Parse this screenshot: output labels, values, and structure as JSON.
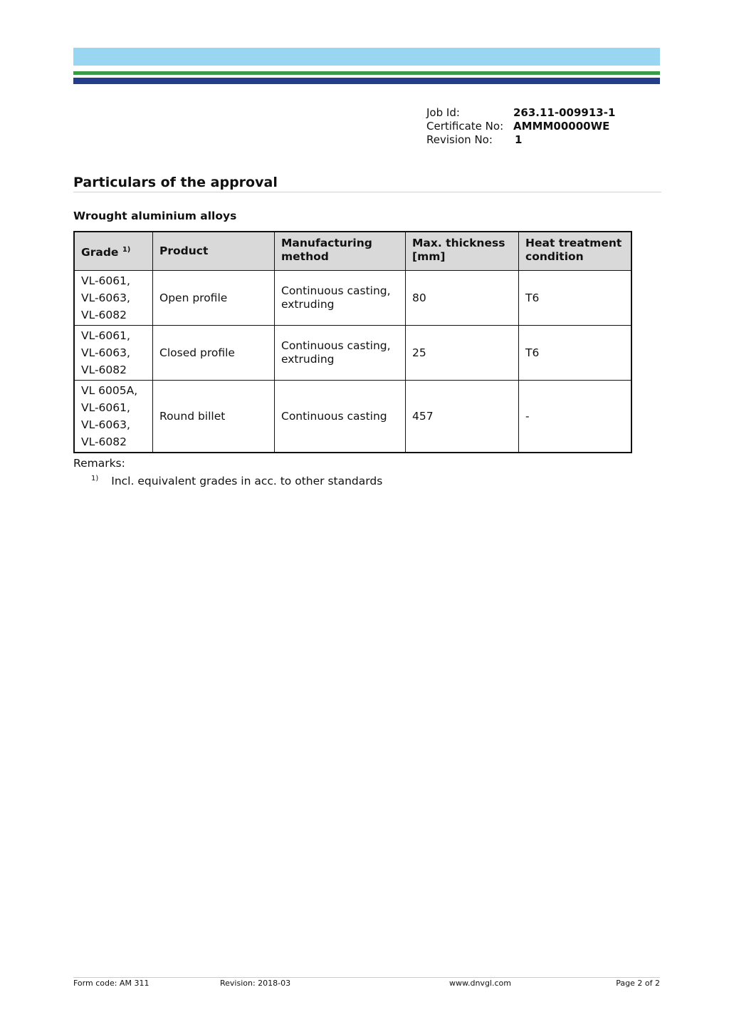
{
  "colors": {
    "bar_light": "#99d6f1",
    "bar_green": "#3a9b47",
    "bar_navy": "#233d8b"
  },
  "meta": {
    "job_label": "Job Id:",
    "job_value": "263.11-009913-1",
    "cert_label": "Certificate No:",
    "cert_value": "AMMM00000WE",
    "rev_label": "Revision No:",
    "rev_value": "1"
  },
  "title": "Particulars of the approval",
  "subtitle": "Wrought aluminium alloys",
  "table": {
    "headers": [
      "Grade",
      "Product",
      "Manufacturing method",
      "Max. thickness [mm]",
      "Heat treatment condition"
    ],
    "grade_sup": "1)",
    "rows": [
      [
        "VL-6061,\nVL-6063,\nVL-6082",
        "Open profile",
        "Continuous casting, extruding",
        "80",
        "T6"
      ],
      [
        "VL-6061,\nVL-6063,\nVL-6082",
        "Closed profile",
        "Continuous casting, extruding",
        "25",
        "T6"
      ],
      [
        "VL 6005A,\nVL-6061,\nVL-6063,\nVL-6082",
        "Round billet",
        "Continuous casting",
        "457",
        "-"
      ]
    ]
  },
  "remarks": {
    "label": "Remarks:",
    "note_marker": "1)",
    "note_text": "Incl. equivalent grades in acc. to other standards"
  },
  "footer": {
    "form_code": "Form code: AM 311",
    "revision": "Revision: 2018-03",
    "website": "www.dnvgl.com",
    "page": "Page 2 of 2"
  }
}
